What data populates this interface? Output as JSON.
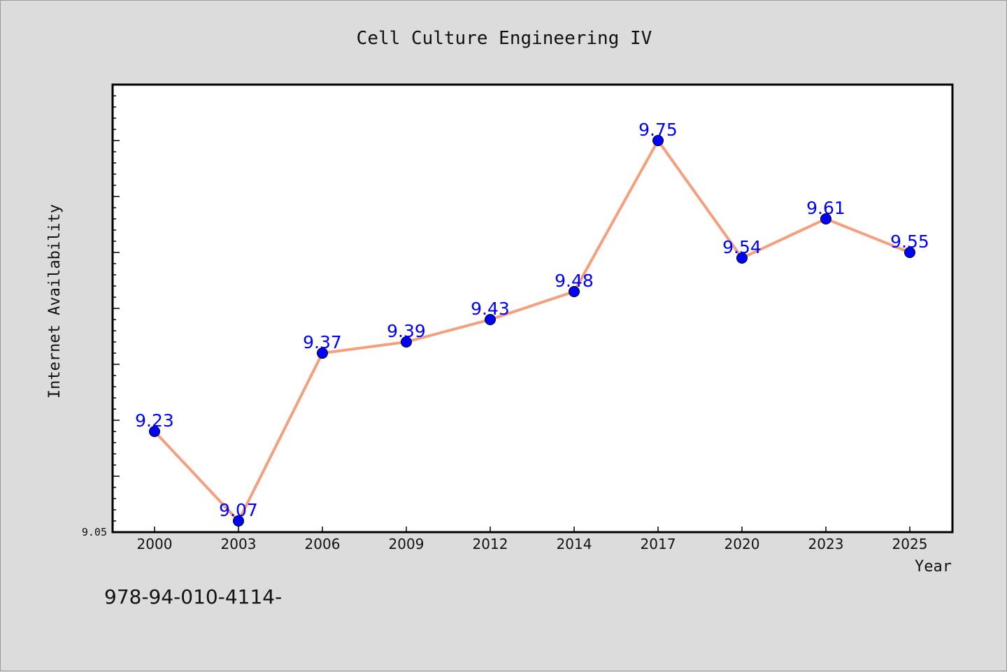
{
  "chart_data": {
    "type": "line",
    "title": "Cell Culture Engineering IV",
    "xlabel": "Year",
    "ylabel": "Internet Availability",
    "categories": [
      "2000",
      "2003",
      "2006",
      "2009",
      "2012",
      "2014",
      "2017",
      "2020",
      "2023",
      "2025"
    ],
    "series": [
      {
        "values": [
          9.23,
          9.07,
          9.37,
          9.39,
          9.43,
          9.48,
          9.75,
          9.54,
          9.61,
          9.55
        ],
        "labels": [
          "9.23",
          "9.07",
          "9.37",
          "9.39",
          "9.43",
          "9.48",
          "9.75",
          "9.54",
          "9.61",
          "9.55"
        ]
      }
    ],
    "ylim": [
      9.05,
      9.85
    ],
    "yticks_labeled": [
      "9.05"
    ],
    "grid": false,
    "line_color": "#f4a07f",
    "marker_color": "#0000ff",
    "label_color": "#0000ff"
  },
  "footer": {
    "text": "978-94-010-4114-"
  }
}
